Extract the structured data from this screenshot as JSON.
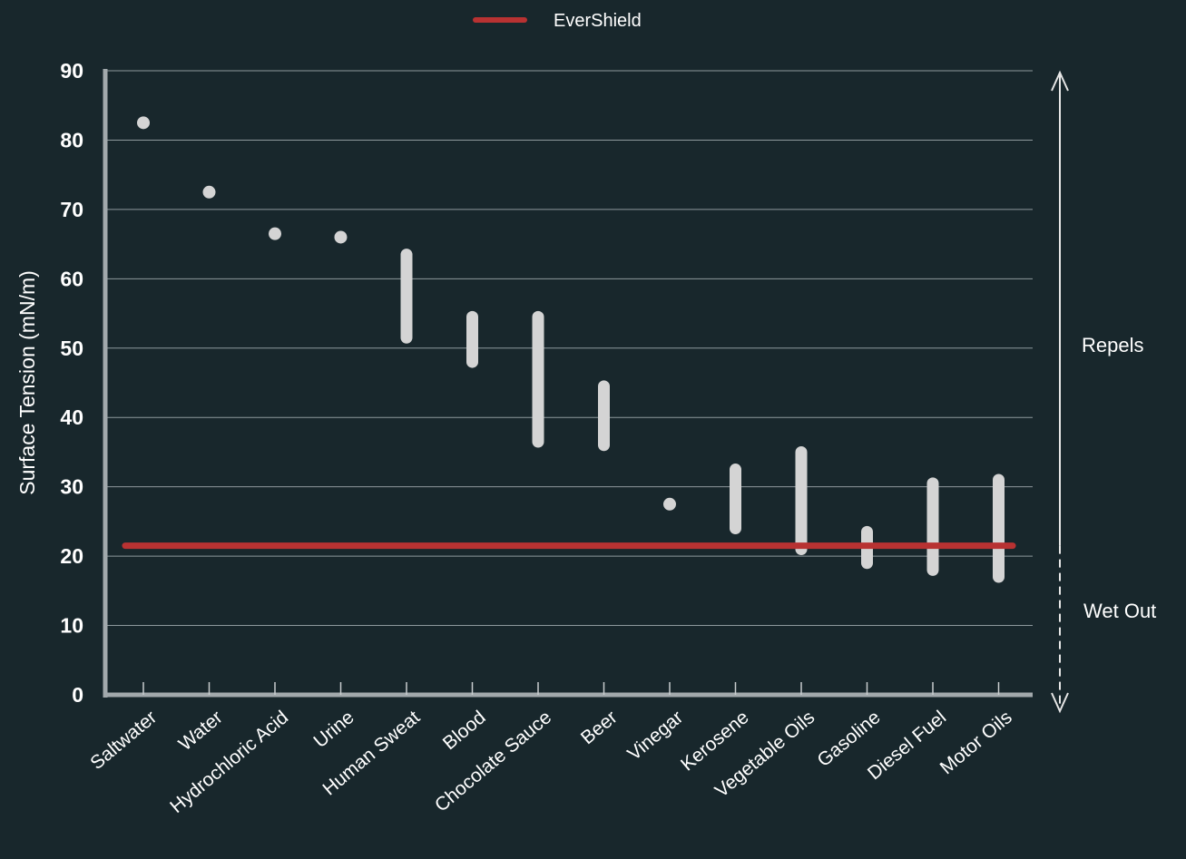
{
  "chart_data": {
    "type": "scatter",
    "ylabel": "Surface Tension (mN/m)",
    "xlabel": "",
    "ylim": [
      0,
      90
    ],
    "yticks": [
      0,
      10,
      20,
      30,
      40,
      50,
      60,
      70,
      80,
      90
    ],
    "grid": true,
    "legend": {
      "placement": "top-center",
      "entries": [
        "EverShield"
      ]
    },
    "categories": [
      "Saltwater",
      "Water",
      "Hydrochloric Acid",
      "Urine",
      "Human Sweat",
      "Blood",
      "Chocolate Sauce",
      "Beer",
      "Vinegar",
      "Kerosene",
      "Vegetable Oils",
      "Gasoline",
      "Diesel Fuel",
      "Motor Oils"
    ],
    "series": [
      {
        "type": "range",
        "color": "#d4d4d4",
        "points": [
          {
            "category": "Saltwater",
            "low": 82.5,
            "high": 82.5
          },
          {
            "category": "Water",
            "low": 72.5,
            "high": 72.5
          },
          {
            "category": "Hydrochloric Acid",
            "low": 66.5,
            "high": 66.5
          },
          {
            "category": "Urine",
            "low": 66,
            "high": 66
          },
          {
            "category": "Human Sweat",
            "low": 51.5,
            "high": 63.5
          },
          {
            "category": "Blood",
            "low": 48,
            "high": 54.5
          },
          {
            "category": "Chocolate Sauce",
            "low": 36.5,
            "high": 54.5
          },
          {
            "category": "Beer",
            "low": 36,
            "high": 44.5
          },
          {
            "category": "Vinegar",
            "low": 27.5,
            "high": 27.5
          },
          {
            "category": "Kerosene",
            "low": 24,
            "high": 32.5
          },
          {
            "category": "Vegetable Oils",
            "low": 21,
            "high": 35
          },
          {
            "category": "Gasoline",
            "low": 19,
            "high": 23.5
          },
          {
            "category": "Diesel Fuel",
            "low": 18,
            "high": 30.5
          },
          {
            "category": "Motor Oils",
            "low": 17,
            "high": 31
          }
        ]
      },
      {
        "name": "EverShield",
        "type": "hline",
        "color": "#b83232",
        "value": 21.5
      }
    ],
    "annotations": [
      {
        "text": "Repels",
        "direction": "up"
      },
      {
        "text": "Wet Out",
        "direction": "down"
      }
    ]
  }
}
